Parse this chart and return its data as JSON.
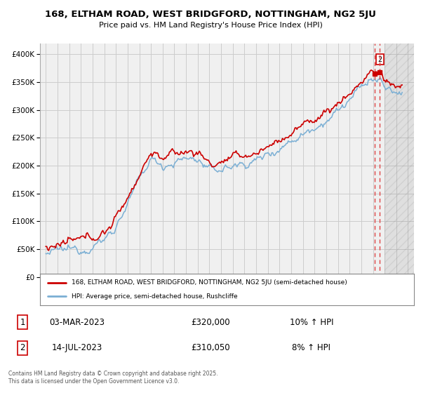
{
  "title": "168, ELTHAM ROAD, WEST BRIDGFORD, NOTTINGHAM, NG2 5JU",
  "subtitle": "Price paid vs. HM Land Registry's House Price Index (HPI)",
  "legend_label_red": "168, ELTHAM ROAD, WEST BRIDGFORD, NOTTINGHAM, NG2 5JU (semi-detached house)",
  "legend_label_blue": "HPI: Average price, semi-detached house, Rushcliffe",
  "transactions": [
    {
      "num": "1",
      "date": "03-MAR-2023",
      "price": "£320,000",
      "hpi": "10% ↑ HPI"
    },
    {
      "num": "2",
      "date": "14-JUL-2023",
      "price": "£310,050",
      "hpi": "8% ↑ HPI"
    }
  ],
  "footnote": "Contains HM Land Registry data © Crown copyright and database right 2025.\nThis data is licensed under the Open Government Licence v3.0.",
  "vline1_x": 2023.17,
  "vline2_x": 2023.54,
  "hatch_start": 2024.0,
  "ylim": [
    0,
    420000
  ],
  "xlim_start": 1994.5,
  "xlim_end": 2026.5,
  "red_color": "#cc0000",
  "blue_color": "#7bafd4",
  "vline_color": "#dd4444",
  "grid_color": "#cccccc",
  "bg_color": "#ffffff",
  "plot_bg_color": "#f0f0f0"
}
